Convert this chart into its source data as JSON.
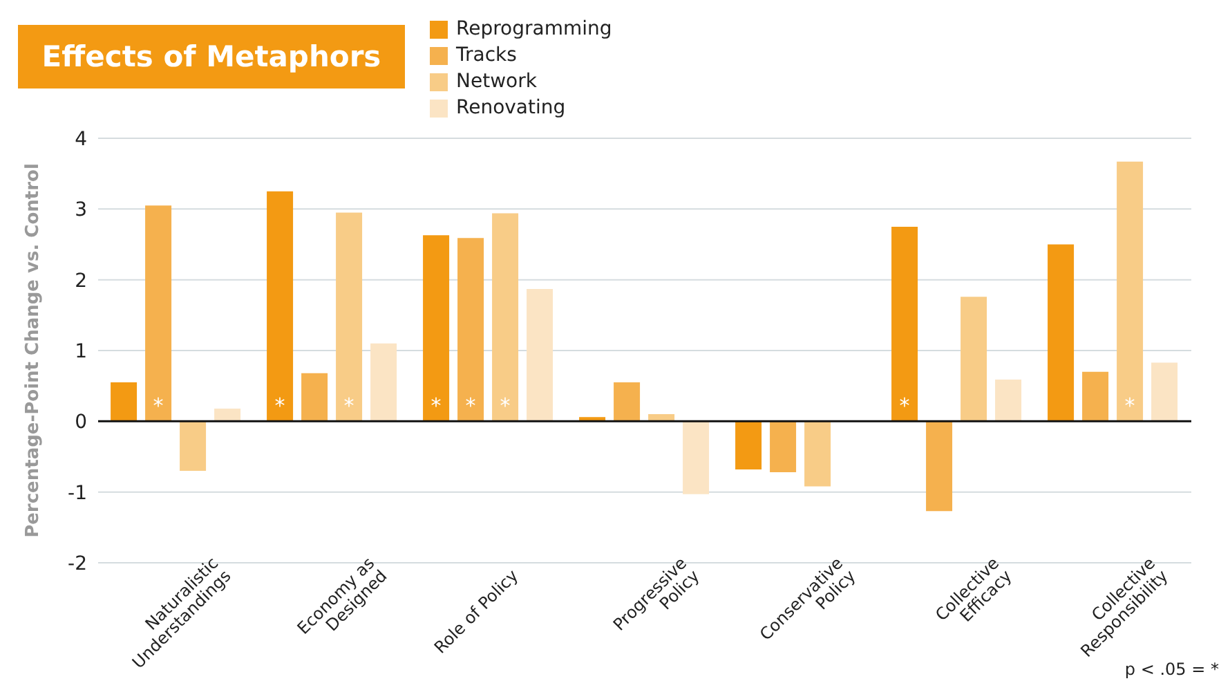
{
  "chart_data": {
    "type": "bar",
    "title": "Effects of Metaphors",
    "ylabel": "Percentage-Point Change vs. Control",
    "categories": [
      "Naturalistic\nUnderstandings",
      "Economy as\nDesigned",
      "Role of Policy",
      "Progressive\nPolicy",
      "Conservative\nPolicy",
      "Collective\nEfficacy",
      "Collective\nResponsibility"
    ],
    "series": [
      {
        "name": "Reprogramming",
        "color": "#f39a13",
        "values": [
          0.55,
          3.25,
          2.63,
          0.06,
          -0.68,
          2.75,
          2.5
        ],
        "value_labels": [
          null,
          "*",
          "*",
          null,
          null,
          "*",
          null
        ]
      },
      {
        "name": "Tracks",
        "color": "#f5b14e",
        "values": [
          3.05,
          0.68,
          2.59,
          0.55,
          -0.72,
          -1.27,
          0.7
        ],
        "value_labels": [
          "*",
          null,
          "*",
          null,
          null,
          null,
          null
        ]
      },
      {
        "name": "Network",
        "color": "#f8cc87",
        "values": [
          -0.7,
          2.95,
          2.94,
          0.1,
          -0.92,
          1.76,
          3.67
        ],
        "value_labels": [
          null,
          "*",
          "*",
          null,
          null,
          null,
          "*"
        ]
      },
      {
        "name": "Renovating",
        "color": "#fbe4c4",
        "values": [
          0.18,
          1.1,
          1.87,
          -1.03,
          null,
          0.59,
          0.83
        ],
        "value_labels": [
          null,
          null,
          null,
          null,
          null,
          null,
          null
        ]
      }
    ],
    "ylim": [
      -2,
      4
    ],
    "yticks": [
      -2,
      -1,
      0,
      1,
      2,
      3,
      4
    ],
    "grid": "y",
    "legend": "top",
    "annotations": [
      "p < .05 = *"
    ]
  }
}
